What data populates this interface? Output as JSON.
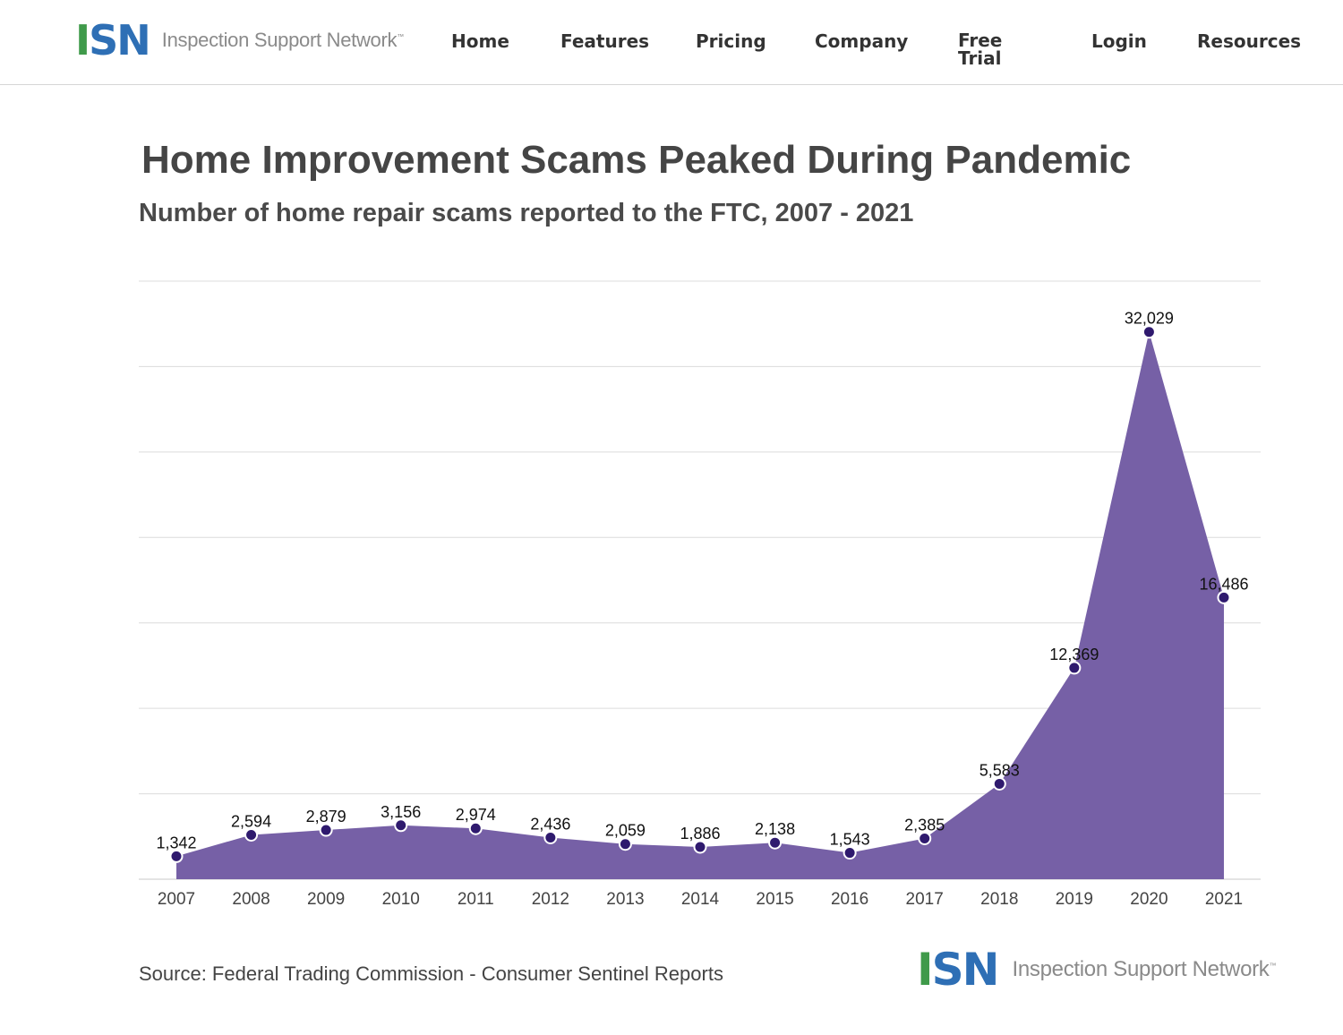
{
  "header": {
    "logo": {
      "mark_i": "I",
      "mark_s": "S",
      "mark_n": "N",
      "text": "Inspection Support Network",
      "tm": "™"
    },
    "nav": [
      {
        "label": "Home"
      },
      {
        "label": "Features"
      },
      {
        "label": "Pricing"
      },
      {
        "label": "Company"
      },
      {
        "label": "Free Trial"
      },
      {
        "label": "Login"
      },
      {
        "label": "Resources"
      }
    ]
  },
  "footer": {
    "source": "Source: Federal Trading Commission - Consumer Sentinel Reports",
    "logo": {
      "mark_i": "I",
      "mark_s": "S",
      "mark_n": "N",
      "text": "Inspection Support Network",
      "tm": "™"
    }
  },
  "colors": {
    "area": "#7660a6",
    "point": "#2f1a6e",
    "grid": "#dcdcdc",
    "accent_green": "#3f9a4a",
    "accent_blue": "#2e6fb5"
  },
  "chart_data": {
    "type": "area",
    "title": "Home Improvement Scams Peaked During Pandemic",
    "subtitle": "Number of home repair scams reported to the FTC, 2007 - 2021",
    "xlabel": "",
    "ylabel": "",
    "categories": [
      "2007",
      "2008",
      "2009",
      "2010",
      "2011",
      "2012",
      "2013",
      "2014",
      "2015",
      "2016",
      "2017",
      "2018",
      "2019",
      "2020",
      "2021"
    ],
    "values": [
      1342,
      2594,
      2879,
      3156,
      2974,
      2436,
      2059,
      1886,
      2138,
      1543,
      2385,
      5583,
      12369,
      32029,
      16486
    ],
    "data_labels": [
      "1,342",
      "2,594",
      "2,879",
      "3,156",
      "2,974",
      "2,436",
      "2,059",
      "1,886",
      "2,138",
      "1,543",
      "2,385",
      "5,583",
      "12,369",
      "32,029",
      "16,486"
    ],
    "ylim": [
      0,
      35000
    ],
    "grid": true,
    "legend": "none"
  }
}
